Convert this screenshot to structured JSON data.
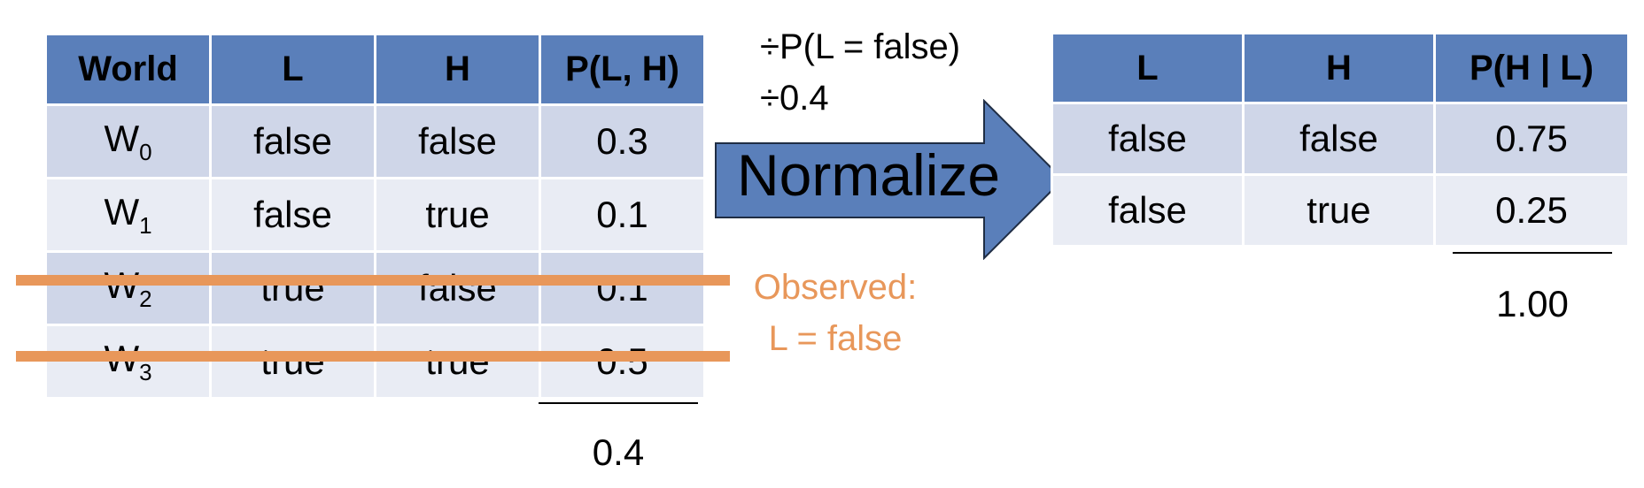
{
  "joint_table": {
    "headers": {
      "world": "World",
      "l": "L",
      "h": "H",
      "p": "P(L, H)"
    },
    "rows": [
      {
        "world": "W",
        "sub": "0",
        "l": "false",
        "h": "false",
        "p": "0.3"
      },
      {
        "world": "W",
        "sub": "1",
        "l": "false",
        "h": "true",
        "p": "0.1"
      },
      {
        "world": "W",
        "sub": "2",
        "l": "true",
        "h": "false",
        "p": "0.1"
      },
      {
        "world": "W",
        "sub": "3",
        "l": "true",
        "h": "true",
        "p": "0.5"
      }
    ],
    "sum": "0.4"
  },
  "observation": {
    "line1": "Observed:",
    "line2": "L = false"
  },
  "normalize": {
    "divide_line1": "÷P(L = false)",
    "divide_line2": "÷0.4",
    "arrow_label": "Normalize"
  },
  "conditional_table": {
    "headers": {
      "l": "L",
      "h": "H",
      "p": "P(H | L)"
    },
    "rows": [
      {
        "l": "false",
        "h": "false",
        "p": "0.75"
      },
      {
        "l": "false",
        "h": "true",
        "p": "0.25"
      }
    ],
    "sum": "1.00"
  },
  "colors": {
    "header": "#5a7fba",
    "row_odd": "#cfd6e8",
    "row_even": "#e9ecf4",
    "observed_accent": "#e8975a",
    "arrow_fill": "#5a7fba",
    "arrow_stroke": "#1f2d44"
  }
}
